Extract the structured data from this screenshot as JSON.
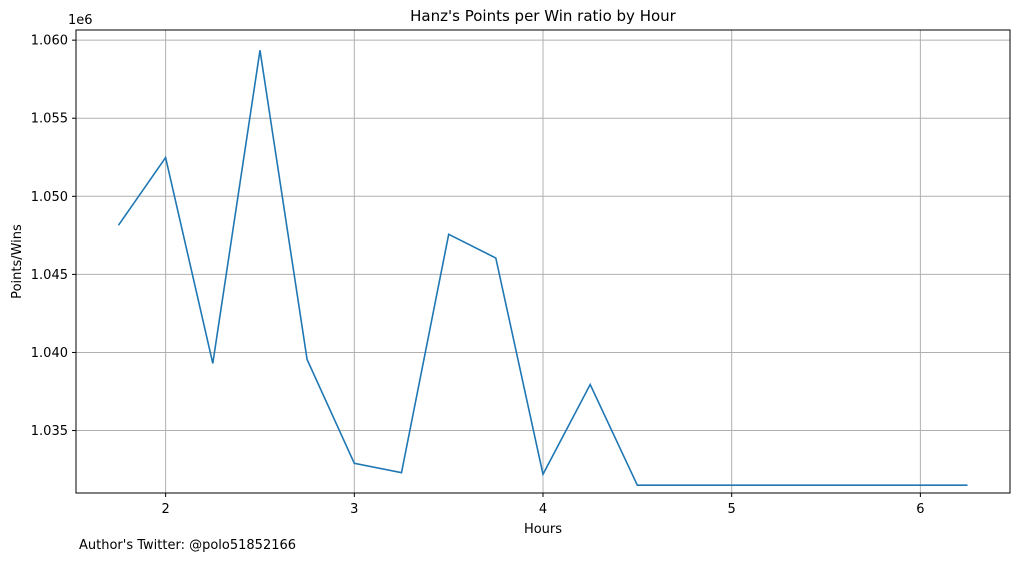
{
  "chart_data": {
    "type": "line",
    "title": "Hanz's Points per Win ratio by Hour",
    "xlabel": "Hours",
    "ylabel": "Points/Wins",
    "y_offset_label": "1e6",
    "x": [
      1.75,
      2.0,
      2.25,
      2.5,
      2.75,
      3.0,
      3.25,
      3.5,
      3.75,
      4.0,
      4.25,
      4.5,
      4.75,
      5.0,
      5.25,
      5.5,
      5.75,
      6.0,
      6.25
    ],
    "y": [
      1048150,
      1052480,
      1039300,
      1059350,
      1039550,
      1032900,
      1032300,
      1047570,
      1046050,
      1032200,
      1037950,
      1031500,
      1031500,
      1031500,
      1031500,
      1031500,
      1031500,
      1031500,
      1031500
    ],
    "xlim": [
      1.525,
      6.475
    ],
    "ylim": [
      1031000,
      1060650
    ],
    "xticks": [
      2,
      3,
      4,
      5,
      6
    ],
    "xtick_labels": [
      "2",
      "3",
      "4",
      "5",
      "6"
    ],
    "yticks": [
      1035000,
      1040000,
      1045000,
      1050000,
      1055000,
      1060000
    ],
    "ytick_labels": [
      "1.035",
      "1.040",
      "1.045",
      "1.050",
      "1.055",
      "1.060"
    ],
    "grid": true,
    "line_color": "#1f77b4",
    "grid_color": "#b0b0b0"
  },
  "footnote": "Author's Twitter: @polo51852166"
}
